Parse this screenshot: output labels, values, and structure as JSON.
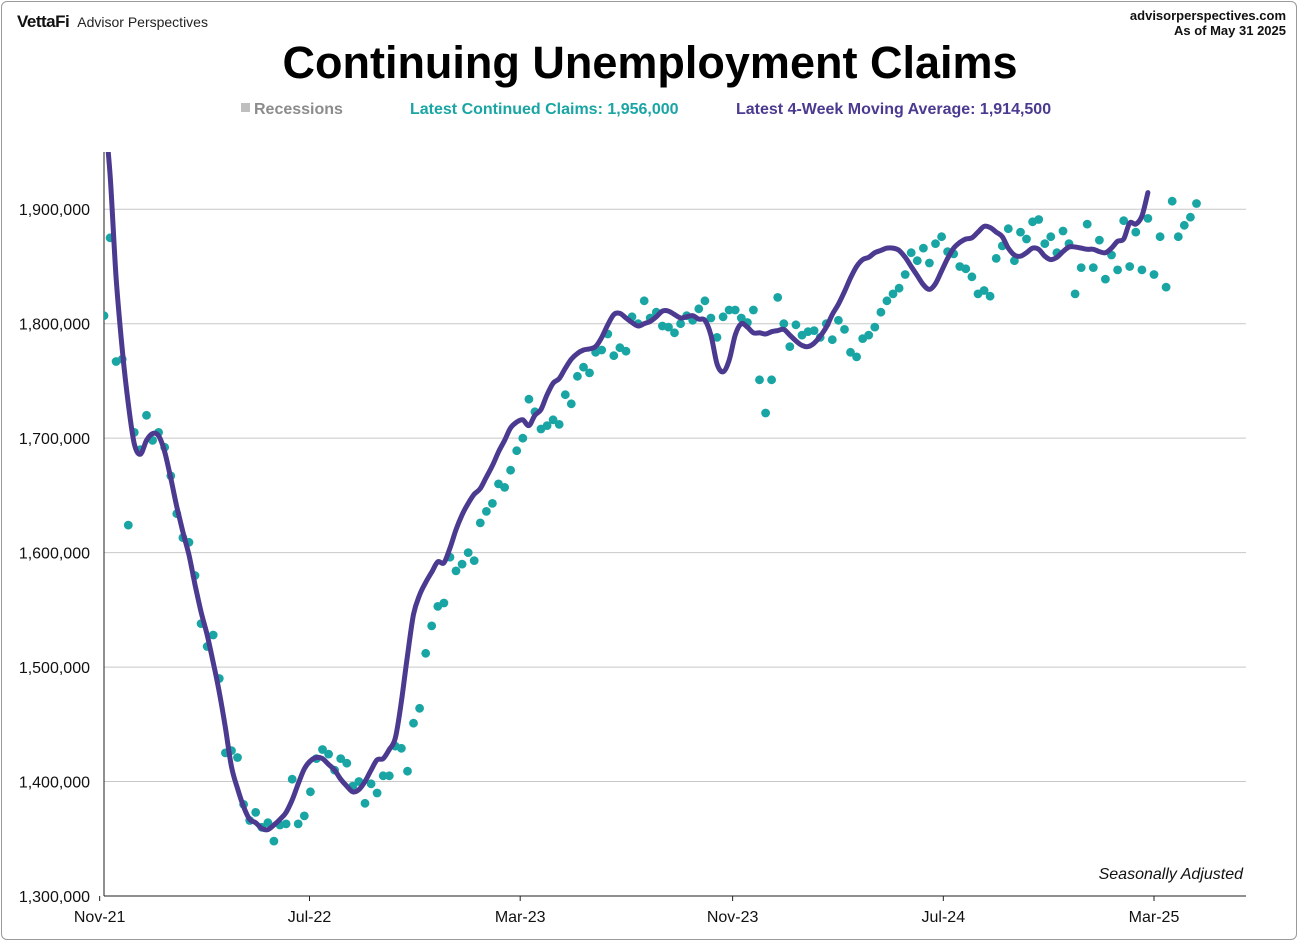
{
  "header": {
    "brand_logo": "VettaFi",
    "brand_name": "Advisor Perspectives",
    "source_url": "advisorperspectives.com",
    "as_of": "As of May 31 2025"
  },
  "note": "Seasonally Adjusted",
  "colors": {
    "claims": "#1aa5a5",
    "moving_average": "#4b3a90",
    "recessions": "#bfbfbf",
    "grid": "#c8c8c8"
  },
  "chart_data": {
    "type": "line",
    "title": "Continuing Unemployment Claims",
    "xlabel": "",
    "ylabel": "",
    "legend": {
      "recessions": "Recessions",
      "claims": "Latest Continued Claims: 1,956,000",
      "moving_average": "Latest 4-Week Moving Average: 1,914,500"
    },
    "x_ticks": [
      "Nov-21",
      "Jul-22",
      "Mar-23",
      "Nov-23",
      "Jul-24",
      "Mar-25"
    ],
    "ylim": [
      1300000,
      1950000
    ],
    "y_ticks": [
      1300000,
      1400000,
      1500000,
      1600000,
      1700000,
      1800000,
      1900000
    ],
    "y_tick_labels": [
      "1,300,000",
      "1,400,000",
      "1,500,000",
      "1,600,000",
      "1,700,000",
      "1,800,000",
      "1,900,000"
    ],
    "grid": true,
    "week_start": "2021-11-06",
    "series": [
      {
        "name": "Continued Claims",
        "style": "scatter",
        "values": [
          1807000,
          1875000,
          1767000,
          1769000,
          1624000,
          1705000,
          1690000,
          1720000,
          1698000,
          1705000,
          1692000,
          1667000,
          1634000,
          1613000,
          1609000,
          1580000,
          1538000,
          1518000,
          1528000,
          1490000,
          1425000,
          1427000,
          1421000,
          1380000,
          1366000,
          1373000,
          1360000,
          1364000,
          1348000,
          1362000,
          1363000,
          1402000,
          1363000,
          1370000,
          1391000,
          1420000,
          1428000,
          1424000,
          1410000,
          1420000,
          1416000,
          1396000,
          1400000,
          1381000,
          1398000,
          1390000,
          1405000,
          1405000,
          1431000,
          1429000,
          1409000,
          1451000,
          1464000,
          1512000,
          1536000,
          1553000,
          1556000,
          1596000,
          1584000,
          1590000,
          1600000,
          1593000,
          1626000,
          1636000,
          1643000,
          1660000,
          1657000,
          1672000,
          1689000,
          1700000,
          1734000,
          1723000,
          1708000,
          1711000,
          1716000,
          1712000,
          1738000,
          1730000,
          1754000,
          1762000,
          1757000,
          1775000,
          1777000,
          1791000,
          1772000,
          1779000,
          1776000,
          1806000,
          1800000,
          1820000,
          1805000,
          1810000,
          1798000,
          1797000,
          1792000,
          1800000,
          1807000,
          1803000,
          1813000,
          1820000,
          1805000,
          1788000,
          1806000,
          1812000,
          1812000,
          1805000,
          1801000,
          1812000,
          1751000,
          1722000,
          1751000,
          1823000,
          1800000,
          1780000,
          1799000,
          1790000,
          1793000,
          1794000,
          1788000,
          1800000,
          1786000,
          1803000,
          1795000,
          1775000,
          1771000,
          1787000,
          1790000,
          1797000,
          1810000,
          1820000,
          1826000,
          1831000,
          1843000,
          1862000,
          1855000,
          1866000,
          1853000,
          1870000,
          1876000,
          1863000,
          1861000,
          1850000,
          1848000,
          1841000,
          1826000,
          1829000,
          1824000,
          1857000,
          1868000,
          1883000,
          1855000,
          1880000,
          1874000,
          1889000,
          1891000,
          1870000,
          1876000,
          1862000,
          1881000,
          1870000,
          1826000,
          1849000,
          1887000,
          1849000,
          1873000,
          1839000,
          1860000,
          1847000,
          1890000,
          1850000,
          1880000,
          1847000,
          1892000,
          1843000,
          1876000,
          1832000,
          1907000,
          1876000,
          1886000,
          1893000,
          1905000,
          1956000
        ]
      },
      {
        "name": "4-Week Moving Average",
        "style": "line",
        "values": [
          1990000,
          1930000,
          1840000,
          1778000,
          1730000,
          1695000,
          1686000,
          1698000,
          1704000,
          1702000,
          1688000,
          1665000,
          1640000,
          1618000,
          1598000,
          1572000,
          1548000,
          1528000,
          1504000,
          1478000,
          1447000,
          1413000,
          1394000,
          1378000,
          1367000,
          1364000,
          1359000,
          1358000,
          1362000,
          1367000,
          1373000,
          1384000,
          1398000,
          1411000,
          1418000,
          1421000,
          1420000,
          1415000,
          1410000,
          1402000,
          1396000,
          1391000,
          1393000,
          1400000,
          1410000,
          1419000,
          1420000,
          1428000,
          1438000,
          1470000,
          1510000,
          1546000,
          1563000,
          1574000,
          1583000,
          1592000,
          1591000,
          1604000,
          1620000,
          1633000,
          1643000,
          1651000,
          1656000,
          1666000,
          1676000,
          1688000,
          1698000,
          1709000,
          1714000,
          1716000,
          1711000,
          1720000,
          1725000,
          1738000,
          1748000,
          1752000,
          1761000,
          1769000,
          1774000,
          1777000,
          1778000,
          1780000,
          1788000,
          1799000,
          1808000,
          1809000,
          1805000,
          1801000,
          1798000,
          1800000,
          1802000,
          1806000,
          1811000,
          1811000,
          1808000,
          1805000,
          1806000,
          1807000,
          1804000,
          1803000,
          1790000,
          1765000,
          1758000,
          1768000,
          1790000,
          1800000,
          1797000,
          1792000,
          1792000,
          1791000,
          1793000,
          1794000,
          1795000,
          1790000,
          1785000,
          1781000,
          1780000,
          1783000,
          1789000,
          1797000,
          1808000,
          1817000,
          1828000,
          1840000,
          1850000,
          1856000,
          1858000,
          1862000,
          1864000,
          1866000,
          1866000,
          1864000,
          1858000,
          1850000,
          1842000,
          1834000,
          1830000,
          1835000,
          1846000,
          1857000,
          1866000,
          1871000,
          1874000,
          1875000,
          1880000,
          1885000,
          1884000,
          1880000,
          1876000,
          1866000,
          1860000,
          1859000,
          1862000,
          1866000,
          1865000,
          1859000,
          1856000,
          1858000,
          1863000,
          1867000,
          1867000,
          1866000,
          1865000,
          1865000,
          1863000,
          1862000,
          1866000,
          1872000,
          1874000,
          1888000,
          1887000,
          1894000,
          1914500
        ]
      }
    ]
  }
}
